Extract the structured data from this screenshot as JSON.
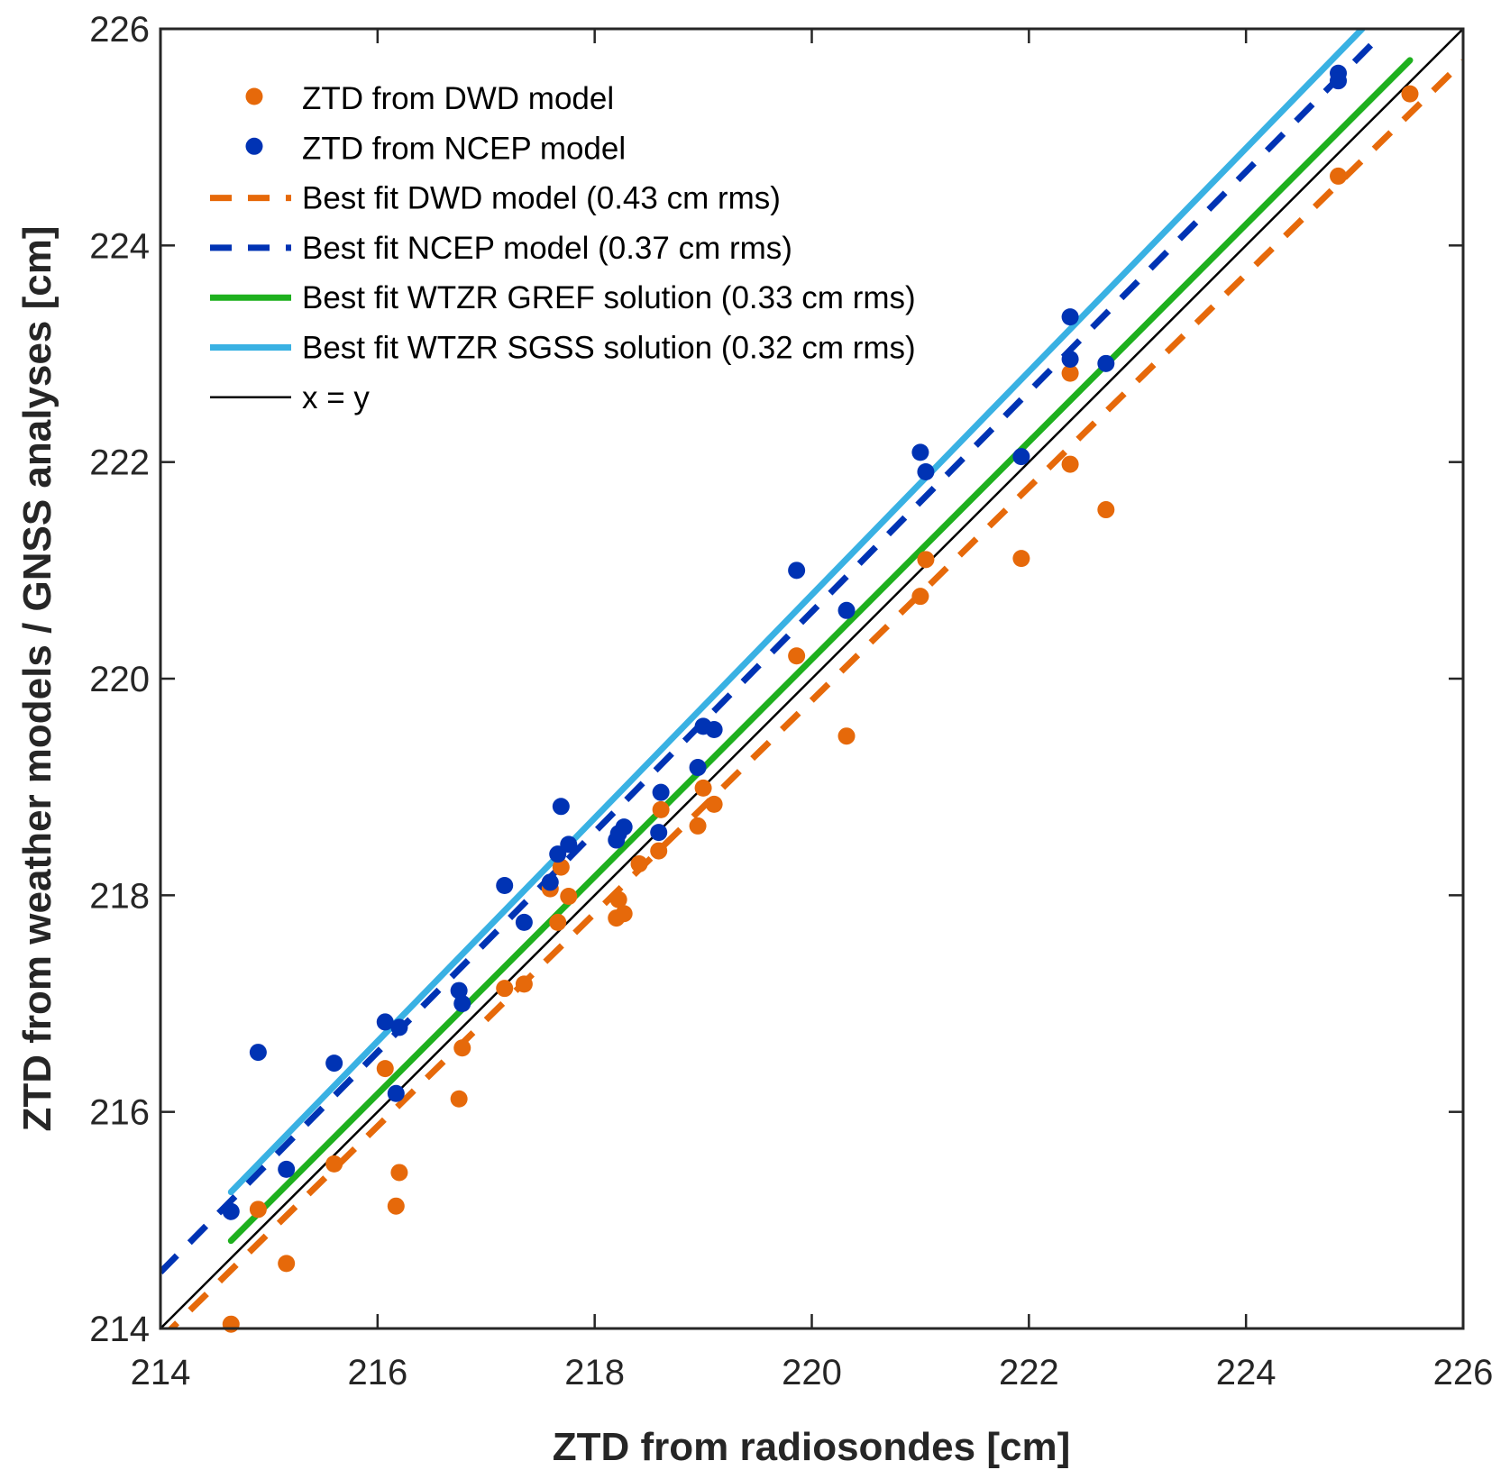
{
  "chart_data": {
    "type": "scatter",
    "title": "",
    "xlabel": "ZTD from radiosondes [cm]",
    "ylabel": "ZTD from weather models / GNSS analyses [cm]",
    "xlim": [
      214,
      226
    ],
    "ylim": [
      214,
      226
    ],
    "xticks": [
      214,
      216,
      218,
      220,
      222,
      224,
      226
    ],
    "yticks": [
      214,
      216,
      218,
      220,
      222,
      224,
      226
    ],
    "xtick_labels": [
      "214",
      "216",
      "218",
      "220",
      "222",
      "224",
      "226"
    ],
    "ytick_labels": [
      "214",
      "216",
      "218",
      "220",
      "222",
      "224",
      "226"
    ],
    "grid": false,
    "legend_position": "top-left",
    "series": [
      {
        "name": "ZTD from DWD model",
        "kind": "scatter",
        "color": "#e6690a",
        "points": [
          [
            214.65,
            214.04
          ],
          [
            214.9,
            215.1
          ],
          [
            215.16,
            214.6
          ],
          [
            215.6,
            215.52
          ],
          [
            216.07,
            216.4
          ],
          [
            216.17,
            215.13
          ],
          [
            216.2,
            215.44
          ],
          [
            216.75,
            216.12
          ],
          [
            216.78,
            216.59
          ],
          [
            217.17,
            217.14
          ],
          [
            217.35,
            217.18
          ],
          [
            217.59,
            218.06
          ],
          [
            217.66,
            217.75
          ],
          [
            217.69,
            218.26
          ],
          [
            217.76,
            217.99
          ],
          [
            218.2,
            217.79
          ],
          [
            218.22,
            217.96
          ],
          [
            218.27,
            217.83
          ],
          [
            218.41,
            218.29
          ],
          [
            218.59,
            218.41
          ],
          [
            218.61,
            218.79
          ],
          [
            218.95,
            218.64
          ],
          [
            219.0,
            218.99
          ],
          [
            219.1,
            218.84
          ],
          [
            219.86,
            220.21
          ],
          [
            220.32,
            219.47
          ],
          [
            221.0,
            220.76
          ],
          [
            221.05,
            221.1
          ],
          [
            221.93,
            221.11
          ],
          [
            222.38,
            222.82
          ],
          [
            222.38,
            221.98
          ],
          [
            222.71,
            221.56
          ],
          [
            224.85,
            224.64
          ],
          [
            225.51,
            225.4
          ]
        ]
      },
      {
        "name": "ZTD from NCEP model",
        "kind": "scatter",
        "color": "#0033b4",
        "points": [
          [
            214.65,
            215.08
          ],
          [
            214.9,
            216.55
          ],
          [
            215.16,
            215.47
          ],
          [
            215.6,
            216.45
          ],
          [
            216.07,
            216.83
          ],
          [
            216.17,
            216.17
          ],
          [
            216.2,
            216.78
          ],
          [
            216.75,
            217.12
          ],
          [
            216.78,
            217.0
          ],
          [
            217.17,
            218.09
          ],
          [
            217.35,
            217.75
          ],
          [
            217.59,
            218.12
          ],
          [
            217.66,
            218.38
          ],
          [
            217.69,
            218.82
          ],
          [
            217.76,
            218.47
          ],
          [
            218.2,
            218.51
          ],
          [
            218.22,
            218.57
          ],
          [
            218.27,
            218.63
          ],
          [
            218.59,
            218.58
          ],
          [
            218.61,
            218.95
          ],
          [
            218.95,
            219.18
          ],
          [
            219.0,
            219.56
          ],
          [
            219.1,
            219.53
          ],
          [
            219.86,
            221.0
          ],
          [
            220.32,
            220.63
          ],
          [
            221.0,
            222.09
          ],
          [
            221.05,
            221.91
          ],
          [
            221.93,
            222.05
          ],
          [
            222.38,
            223.34
          ],
          [
            222.38,
            222.95
          ],
          [
            222.71,
            222.91
          ],
          [
            224.85,
            225.59
          ],
          [
            224.85,
            225.52
          ]
        ]
      },
      {
        "name": "Best fit DWD model (0.43 cm rms)",
        "kind": "line",
        "style": "dashed",
        "color": "#e6690a",
        "points": [
          [
            214.0,
            213.9
          ],
          [
            226.0,
            225.7
          ]
        ]
      },
      {
        "name": "Best fit NCEP model (0.37 cm rms)",
        "kind": "line",
        "style": "dashed",
        "color": "#0033b4",
        "points": [
          [
            214.0,
            214.52
          ],
          [
            225.2,
            225.9
          ]
        ]
      },
      {
        "name": "Best fit WTZR GREF solution (0.33 cm rms)",
        "kind": "line",
        "style": "solid",
        "color": "#1eb01e",
        "points": [
          [
            214.65,
            214.81
          ],
          [
            225.51,
            225.71
          ]
        ]
      },
      {
        "name": "Best fit WTZR SGSS solution (0.32 cm rms)",
        "kind": "line",
        "style": "solid",
        "color": "#39b1e3",
        "points": [
          [
            214.65,
            215.26
          ],
          [
            225.07,
            226.0
          ]
        ]
      },
      {
        "name": "x = y",
        "kind": "line",
        "style": "solid-thin",
        "color": "#000000",
        "points": [
          [
            214.0,
            214.0
          ],
          [
            226.0,
            226.0
          ]
        ]
      }
    ]
  }
}
